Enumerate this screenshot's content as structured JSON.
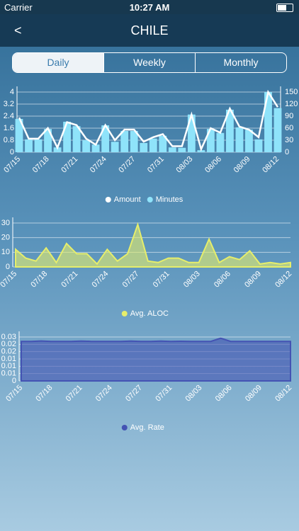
{
  "status_bar": {
    "carrier": "Carrier",
    "time": "10:27 AM"
  },
  "nav": {
    "back": "<",
    "title": "CHILE"
  },
  "tabs": [
    "Daily",
    "Weekly",
    "Monthly"
  ],
  "chart_data": [
    {
      "type": "bar_line",
      "categories": [
        "07/15",
        null,
        null,
        "07/18",
        null,
        null,
        "07/21",
        null,
        null,
        "07/24",
        null,
        null,
        "07/27",
        null,
        null,
        "07/31",
        null,
        null,
        "08/03",
        null,
        null,
        "08/06",
        null,
        null,
        "08/09",
        null,
        null,
        "08/12"
      ],
      "series": [
        {
          "name": "Amount",
          "color": "#ffffff",
          "type": "line",
          "values": [
            2.3,
            0.9,
            0.9,
            1.6,
            0.3,
            2.0,
            1.8,
            0.9,
            0.5,
            1.8,
            0.8,
            1.5,
            1.5,
            0.7,
            1.0,
            1.2,
            0.4,
            0.4,
            2.5,
            0.2,
            1.6,
            1.3,
            2.9,
            1.7,
            1.5,
            1.0,
            4.0,
            3.0
          ]
        },
        {
          "name": "Minutes",
          "color": "#8fe3fa",
          "type": "bar",
          "axis": "y2",
          "values": [
            83,
            32,
            32,
            58,
            12,
            76,
            65,
            30,
            19,
            67,
            26,
            53,
            53,
            23,
            34,
            41,
            12,
            11,
            94,
            5,
            58,
            48,
            106,
            62,
            56,
            32,
            150,
            110
          ]
        }
      ],
      "ylim": [
        0,
        4
      ],
      "yticks": [
        0,
        0.8,
        1.6,
        2.4,
        3.2,
        4
      ],
      "y2lim": [
        0,
        150
      ],
      "y2ticks": [
        0,
        30,
        60,
        90,
        120,
        150
      ],
      "grid": true
    },
    {
      "type": "area",
      "categories": [
        "07/15",
        null,
        null,
        "07/18",
        null,
        null,
        "07/21",
        null,
        null,
        "07/24",
        null,
        null,
        "07/27",
        null,
        null,
        "07/31",
        null,
        null,
        "08/03",
        null,
        null,
        "08/06",
        null,
        null,
        "08/09",
        null,
        null,
        "08/12"
      ],
      "series": [
        {
          "name": "Avg. ALOC",
          "color": "#e6ee6b",
          "values": [
            12,
            6,
            4,
            13,
            3,
            16,
            9,
            9,
            2,
            12,
            4,
            9,
            29,
            4,
            3,
            6,
            6,
            3,
            3,
            19,
            3,
            7,
            5,
            11,
            2,
            3,
            2,
            3
          ]
        }
      ],
      "ylim": [
        0,
        30
      ],
      "yticks": [
        0,
        10,
        20,
        30
      ],
      "grid": true
    },
    {
      "type": "area",
      "categories": [
        "07/15",
        null,
        null,
        "07/18",
        null,
        null,
        "07/21",
        null,
        null,
        "07/24",
        null,
        null,
        "07/27",
        null,
        null,
        "07/31",
        null,
        null,
        "08/03",
        null,
        null,
        "08/06",
        null,
        null,
        "08/09",
        null,
        null,
        "08/12"
      ],
      "series": [
        {
          "name": "Avg. Rate",
          "color": "#4453b3",
          "values": [
            0.027,
            0.027,
            0.0273,
            0.027,
            0.027,
            0.027,
            0.0272,
            0.027,
            0.027,
            0.027,
            0.027,
            0.0272,
            0.027,
            0.027,
            0.0272,
            0.027,
            0.0271,
            0.027,
            0.027,
            0.027,
            0.0292,
            0.027,
            0.027,
            0.027,
            0.027,
            0.027,
            0.027,
            0.027
          ]
        }
      ],
      "ylim": [
        0,
        0.03
      ],
      "yticks": [
        0,
        {
          "value": 0.005,
          "label": "0.01"
        },
        0.01,
        {
          "value": 0.015,
          "label": "0.01"
        },
        0.02,
        {
          "value": 0.025,
          "label": "0.02"
        },
        0.03
      ],
      "grid": true
    }
  ]
}
